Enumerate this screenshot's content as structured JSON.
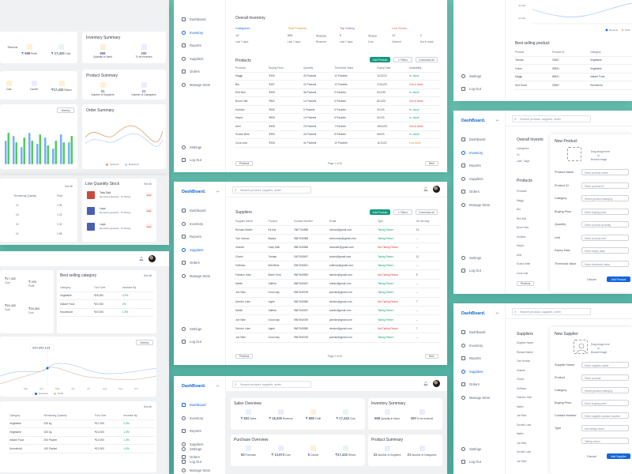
{
  "brand": "DashBoard.",
  "search_placeholder": "Search product, supplier, order",
  "nav": [
    "Dashboard",
    "Inventory",
    "Reports",
    "Suppliers",
    "Orders",
    "Manage Store"
  ],
  "nav_bottom": [
    "Settings",
    "Log Out"
  ],
  "icons": {
    "search": "search-icon",
    "bell": "bell-icon",
    "filter": "filter-icon",
    "collapse": "collapse-icon"
  },
  "colors": {
    "primary": "#1366d9",
    "green": "#10a760",
    "red": "#da3e33",
    "orange": "#e19133",
    "bg": "#5bbaab"
  },
  "left_top": {
    "sales_vals": [
      {
        "value": "₹ 868",
        "label": "Profit"
      },
      {
        "value": "₹ 17,432",
        "label": "Cost"
      }
    ],
    "row_labels": [
      "Revenue"
    ],
    "purchase_vals": [
      {
        "label": "Cost"
      },
      {
        "label": "Cancel"
      },
      {
        "value": "₹17,432",
        "label": "Return"
      }
    ],
    "inv_title": "Inventory Summary",
    "inv": [
      {
        "value": "868",
        "label": "Quantity in Hand"
      },
      {
        "value": "200",
        "label": "To be received"
      }
    ],
    "prod_title": "Product Summary",
    "prod": [
      {
        "value": "31",
        "label": "Number of Suppliers"
      },
      {
        "value": "21",
        "label": "Number of Categories"
      }
    ],
    "chart_weekly": "Weekly",
    "order_title": "Order Summary",
    "order_legend": [
      "Ordered",
      "Delivered"
    ]
  },
  "left_mid": {
    "see_all": "See All",
    "headers": [
      "Remaining Quantity",
      "Price"
    ],
    "rows": [
      {
        "qty": "12",
        "price": "₹ 98"
      },
      {
        "qty": "15",
        "price": "₹ 23"
      },
      {
        "qty": "10",
        "price": "₹ 40"
      },
      {
        "qty": "12",
        "price": "₹ 88"
      }
    ],
    "low_title": "Low Quantity Stock",
    "low": [
      {
        "name": "Tata Salt",
        "sub": "Remaining Quantity : 10 Packet",
        "tag": "Low"
      },
      {
        "name": "Lays",
        "sub": "Remaining Quantity : 15 Packet",
        "tag": "Low"
      },
      {
        "name": "Lays",
        "sub": "Remaining Quantity : 15 Packet",
        "tag": "Low"
      }
    ]
  },
  "left_bottom": {
    "top_vals": [
      {
        "value": "₹17,432",
        "label": "Cost"
      },
      {
        "value": "₹15,432",
        "label": "Cost"
      },
      {
        "value": "₹ 200",
        "label": "Profit"
      },
      {
        "value": "₹18,300",
        "label": "Cost"
      }
    ],
    "best_cat_title": "Best selling category",
    "see_all": "See All",
    "cat_headers": [
      "Category",
      "Turn Over",
      "Increase By"
    ],
    "cats": [
      {
        "cat": "Vegetable",
        "turn": "₹26,000",
        "inc": "3.2%"
      },
      {
        "cat": "Instant Food",
        "turn": "₹22,000",
        "inc": "2%"
      },
      {
        "cat": "Household",
        "turn": "₹22,000",
        "inc": "1.5%"
      }
    ],
    "tooltip": "220,342,123",
    "weekly": "Weekly",
    "months": [
      "Mar",
      "Apr",
      "May",
      "Jun",
      "Jul",
      "Aug",
      "Sep",
      "Oct"
    ],
    "legend": [
      "Revenue",
      "Profit"
    ],
    "see_all2": "See All",
    "prod_headers": [
      "Category",
      "Remaining Quantity",
      "Turn Over",
      "Increase By"
    ],
    "prods": [
      {
        "cat": "Vegetable",
        "qty": "225 kg",
        "turn": "₹17,000",
        "inc": "2.3%"
      },
      {
        "cat": "Vegetable",
        "qty": "200 kg",
        "turn": "₹12,000",
        "inc": "1.3%"
      },
      {
        "cat": "Instant Food",
        "qty": "200 Packet",
        "turn": "₹12,000",
        "inc": "1.3%"
      },
      {
        "cat": "Household",
        "qty": "100 Packet",
        "turn": "₹12,000",
        "inc": "1.5%"
      }
    ]
  },
  "inventory_page": {
    "overall_title": "Overall Inventory",
    "stats": [
      {
        "title": "Categories",
        "v1": "14",
        "l1": "Last 7 days"
      },
      {
        "title": "Total Products",
        "v1": "868",
        "v2": "₹25000",
        "l1": "Last 7 days",
        "l2": "Revenue"
      },
      {
        "title": "Top Selling",
        "v1": "5",
        "v2": "₹2500",
        "l1": "Last 7 days",
        "l2": "Cost"
      },
      {
        "title": "Low Stocks",
        "v1": "12",
        "v2": "2",
        "l1": "Ordered",
        "l2": "Not in stock"
      }
    ],
    "products_title": "Products",
    "add": "Add Product",
    "filters": "Filters",
    "download": "Download all",
    "headers": [
      "Products",
      "Buying Price",
      "Quantity",
      "Threshold Value",
      "Expiry Date",
      "Availability"
    ],
    "rows": [
      {
        "p": "Maggi",
        "b": "₹430",
        "q": "43 Packets",
        "t": "12 Packets",
        "e": "11/12/22",
        "a": "In- stock",
        "s": "green"
      },
      {
        "p": "Bru",
        "b": "₹257",
        "q": "22 Packets",
        "t": "12 Packets",
        "e": "21/12/22",
        "a": "Out of stock",
        "s": "red"
      },
      {
        "p": "Red Bull",
        "b": "₹405",
        "q": "36 Packets",
        "t": "9 Packets",
        "e": "5/12/22",
        "a": "In- stock",
        "s": "green"
      },
      {
        "p": "Bourn Vita",
        "b": "₹502",
        "q": "14 Packets",
        "t": "6 Packets",
        "e": "8/12/22",
        "a": "Out of stock",
        "s": "red"
      },
      {
        "p": "Horlicks",
        "b": "₹530",
        "q": "5 Packets",
        "t": "5 Packets",
        "e": "9/1/23",
        "a": "In- stock",
        "s": "green"
      },
      {
        "p": "Harpic",
        "b": "₹605",
        "q": "10 Packets",
        "t": "5 Packets",
        "e": "9/1/23",
        "a": "In- stock",
        "s": "green"
      },
      {
        "p": "Ariel",
        "b": "₹408",
        "q": "23 Packets",
        "t": "7 Packets",
        "e": "15/12/23",
        "a": "Out of stock",
        "s": "red"
      },
      {
        "p": "Scotch Brite",
        "b": "₹359",
        "q": "43 Packets",
        "t": "8 Packets",
        "e": "6/6/23",
        "a": "In- stock",
        "s": "green"
      },
      {
        "p": "Coca cola",
        "b": "₹205",
        "q": "41 Packets",
        "t": "10 Packets",
        "e": "11/11/22",
        "a": "Low stock",
        "s": "orange"
      }
    ],
    "prev": "Previous",
    "page": "Page 1 of 10",
    "next": "Next"
  },
  "suppliers_page": {
    "title": "Suppliers",
    "add": "Add Product",
    "filters": "Filters",
    "download": "Download all",
    "headers": [
      "Supplier Name",
      "Product",
      "Contact Number",
      "Email",
      "Type",
      "On the way"
    ],
    "rows": [
      {
        "n": "Richard Martin",
        "p": "Kit Kat",
        "c": "7687764556",
        "e": "richard@gmail.com",
        "t": "Taking Return",
        "w": "13",
        "tc": "green"
      },
      {
        "n": "Tom Homan",
        "p": "Maaza",
        "c": "9867545368",
        "e": "tomhoman@gmail.com",
        "t": "Taking Return",
        "w": "--",
        "tc": "green"
      },
      {
        "n": "Veandir",
        "p": "Dairy Milk",
        "c": "9867545566",
        "e": "veandier@gmail.com",
        "t": "Not Taking Return",
        "w": "--",
        "tc": "red"
      },
      {
        "n": "Charin",
        "p": "Tomato",
        "c": "9267545457",
        "e": "charin@gmail.com",
        "t": "Taking Return",
        "w": "12",
        "tc": "green"
      },
      {
        "n": "Hoffman",
        "p": "Milk Bikis",
        "c": "9367546531",
        "e": "hoffman@gmail.com",
        "t": "Taking Return",
        "w": "--",
        "tc": "green"
      },
      {
        "n": "Fainden Juke",
        "p": "Marie Gold",
        "c": "9667545982",
        "e": "fainden@gmail.com",
        "t": "Not Taking Return",
        "w": "9",
        "tc": "red"
      },
      {
        "n": "Martin",
        "p": "Saffola",
        "c": "9867545457",
        "e": "martin@gmail.com",
        "t": "Taking Return",
        "w": "--",
        "tc": "green"
      },
      {
        "n": "Joe Nike",
        "p": "Good day",
        "c": "9567545769",
        "e": "joenike@gmail.com",
        "t": "Taking Return",
        "w": "--",
        "tc": "green"
      },
      {
        "n": "Dender Luke",
        "p": "Apple",
        "c": "9667545980",
        "e": "dender@gmail.com",
        "t": "Not Taking Return",
        "w": "7",
        "tc": "red"
      },
      {
        "n": "Martin",
        "p": "Saffola",
        "c": "9867545457",
        "e": "martin@gmail.com",
        "t": "Taking Return",
        "w": "--",
        "tc": "green"
      },
      {
        "n": "Joe Nike",
        "p": "Good day",
        "c": "9567545769",
        "e": "joenike@gmail.com",
        "t": "Taking Return",
        "w": "--",
        "tc": "green"
      },
      {
        "n": "Dender Luke",
        "p": "Apple",
        "c": "9667545980",
        "e": "dender@gmail.com",
        "t": "Not Taking Return",
        "w": "7",
        "tc": "red"
      },
      {
        "n": "Joe Nike",
        "p": "Good day",
        "c": "9567545769",
        "e": "joenike@gmail.com",
        "t": "Taking Return",
        "w": "--",
        "tc": "green"
      }
    ],
    "prev": "Previous",
    "page": "Page 1 of 10",
    "next": "Next"
  },
  "dashboard_page": {
    "sales_title": "Sales Overview",
    "sales": [
      {
        "v": "₹ 832",
        "l": "Sales"
      },
      {
        "v": "₹ 18,300",
        "l": "Revenue"
      },
      {
        "v": "₹ 868",
        "l": "Profit"
      },
      {
        "v": "₹ 17,432",
        "l": "Cost"
      }
    ],
    "inv_title": "Inventory Summary",
    "inv": [
      {
        "v": "868",
        "l": "Quantity in Hand"
      },
      {
        "v": "200",
        "l": "To be received"
      }
    ],
    "purchase_title": "Purchase Overview",
    "purchase": [
      {
        "v": "82",
        "l": "Purchase"
      },
      {
        "v": "₹ 13,573",
        "l": "Cost"
      },
      {
        "v": "5",
        "l": "Cancel"
      },
      {
        "v": "₹17,432",
        "l": "Return"
      }
    ],
    "prod_title": "Product Summary",
    "prod": [
      {
        "v": "31",
        "l": "Number of Suppliers"
      },
      {
        "v": "21",
        "l": "Number of Categories"
      }
    ]
  },
  "right_top": {
    "legend": [
      "Revenue",
      "Profit"
    ],
    "months": [
      "Mar",
      "Apr",
      "May",
      "Jun",
      "Jul",
      "Aug"
    ],
    "yticks": [
      "40,000",
      "20,000"
    ],
    "best_title": "Best selling product",
    "headers": [
      "Product",
      "Product ID",
      "Category"
    ],
    "rows": [
      {
        "p": "Tomato",
        "id": "23567",
        "c": "Vegetable"
      },
      {
        "p": "Onion",
        "id": "25831",
        "c": "Vegetable"
      },
      {
        "p": "Maggi",
        "id": "56841",
        "c": "Instant Food"
      },
      {
        "p": "Surf Excel",
        "id": "23567",
        "c": "Household"
      }
    ]
  },
  "new_product": {
    "title": "New Product",
    "drag": "Drag image here",
    "or": "or",
    "browse": "Browse image",
    "fields": [
      {
        "label": "Product Name",
        "ph": "Enter product name"
      },
      {
        "label": "Product ID",
        "ph": "Enter product ID"
      },
      {
        "label": "Category",
        "ph": "Select product category"
      },
      {
        "label": "Buying Price",
        "ph": "Enter buying price"
      },
      {
        "label": "Quantity",
        "ph": "Enter product quantity"
      },
      {
        "label": "Unit",
        "ph": "Enter product unit"
      },
      {
        "label": "Expiry Date",
        "ph": "Enter expiry date"
      },
      {
        "label": "Threshold Value",
        "ph": "Enter threshold value"
      }
    ],
    "discard": "Discard",
    "add": "Add Product",
    "bg_overall": "Overall Invento",
    "bg_categories": "Categories",
    "bg_cat_num": "14",
    "bg_cat_sub": "Last 7 days",
    "bg_products": "Products",
    "bg_products_list": [
      "Products",
      "Maggi",
      "Bru",
      "Red Bull",
      "Bourn Vita",
      "Horlicks",
      "Harpic",
      "Ariel",
      "Scotch Brite",
      "Coca cola"
    ],
    "bg_prev": "Previous"
  },
  "new_supplier": {
    "title": "New Supplier",
    "drag": "Drag image here",
    "or": "or",
    "browse": "Browse image",
    "fields": [
      {
        "label": "Supplier Name",
        "ph": "Enter supplier name"
      },
      {
        "label": "Product",
        "ph": "Enter product"
      },
      {
        "label": "Category",
        "ph": "Select product category"
      },
      {
        "label": "Buying Price",
        "ph": "Enter buying price"
      },
      {
        "label": "Contact Number",
        "ph": "Enter supplier contact number"
      },
      {
        "label": "Type",
        "ph": "Not taking return"
      },
      {
        "label": "",
        "ph": "Taking return"
      }
    ],
    "discard": "Discard",
    "add": "Add Supplier",
    "bg_title": "Suppliers",
    "bg_names": [
      "Supplier Name",
      "Richard Martin",
      "Tom Homan",
      "Veandir",
      "Charin",
      "Hoffman",
      "Fainden Juke",
      "Martin",
      "Joe Nike",
      "Dender Luke",
      "Martin",
      "Joe Nike",
      "Dender Luke",
      "Joe Nike"
    ]
  }
}
